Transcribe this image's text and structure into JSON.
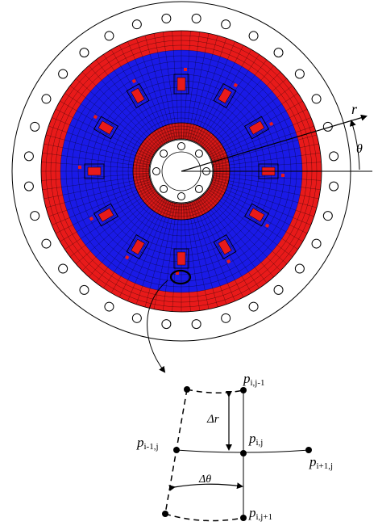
{
  "labels": {
    "r": "r",
    "theta": "θ",
    "delta_r": "Δr",
    "delta_theta": "Δθ",
    "p_i_jm1": {
      "base": "p",
      "sub": "i,j-1"
    },
    "p_im1_j": {
      "base": "p",
      "sub": "i-1,j"
    },
    "p_i_j": {
      "base": "p",
      "sub": "i,j"
    },
    "p_ip1_j": {
      "base": "p",
      "sub": "i+1,j"
    },
    "p_i_jp1": {
      "base": "p",
      "sub": "i,j+1"
    }
  },
  "colors": {
    "mesh_blue": "#1a1ae6",
    "mesh_red": "#e81a1a",
    "mesh_line": "#000000",
    "stroke": "#000000",
    "background": "#ffffff"
  },
  "mesh": {
    "outer_holes": 32,
    "inner_holes": 8,
    "slot_count": 12
  }
}
